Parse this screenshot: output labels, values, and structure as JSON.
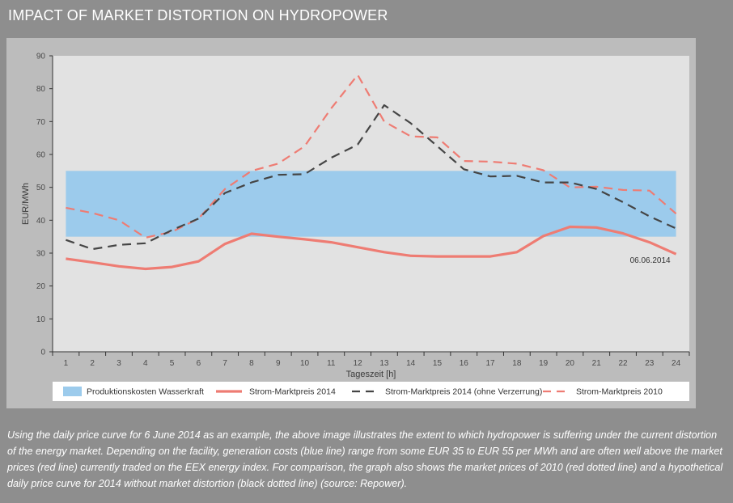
{
  "title": "IMPACT OF MARKET DISTORTION ON HYDROPOWER",
  "caption": "Using the daily price curve for 6 June 2014 as an example, the above image illustrates the extent to which hydropower is suffering under the current distortion of the energy market. Depending on the facility, generation costs (blue line) range from some EUR 35 to EUR 55 per MWh and are often well above the market prices (red line) currently traded on the EEX energy index. For comparison, the graph also shows the market prices of 2010 (red dotted line) and a hypothetical daily price curve for 2014 without market distortion (black dotted line) (source: Repower).",
  "chart_data": {
    "type": "line",
    "xlabel": "Tageszeit [h]",
    "ylabel": "EUR/MWh",
    "x": [
      1,
      2,
      3,
      4,
      5,
      6,
      7,
      8,
      9,
      10,
      11,
      12,
      13,
      14,
      15,
      16,
      17,
      18,
      19,
      20,
      21,
      22,
      23,
      24
    ],
    "xlim": [
      0.5,
      24.5
    ],
    "ylim": [
      0,
      90
    ],
    "yticks": [
      0,
      10,
      20,
      30,
      40,
      50,
      60,
      70,
      80,
      90
    ],
    "grid": false,
    "legend_position": "bottom",
    "band": {
      "name": "Produktionskosten Wasserkraft",
      "from": 35,
      "to": 55,
      "color": "#9ccbec"
    },
    "series": [
      {
        "name": "Strom-Marktpreis 2014",
        "style": "solid",
        "color": "#ee7c73",
        "values": [
          28.3,
          27.2,
          26,
          25.2,
          25.8,
          27.5,
          32.8,
          35.9,
          35,
          34.2,
          33.3,
          31.8,
          30.3,
          29.2,
          29,
          29,
          29,
          30.3,
          35.2,
          38,
          37.8,
          36,
          33.3,
          29.7
        ]
      },
      {
        "name": "Strom-Marktpreis 2014 (ohne Verzerrung)",
        "style": "dashed",
        "color": "#454545",
        "values": [
          34,
          31.2,
          32.5,
          33,
          37,
          40.5,
          48.3,
          51.5,
          53.8,
          54,
          59,
          63,
          75,
          69.5,
          62.5,
          55.5,
          53.3,
          53.5,
          51.5,
          51.5,
          49.5,
          45.5,
          41.2,
          37.5
        ]
      },
      {
        "name": "Strom-Marktpreis 2010",
        "style": "dashed",
        "color": "#ee7c73",
        "values": [
          43.8,
          42.2,
          40,
          34.7,
          36.5,
          40.5,
          49.5,
          55,
          57.2,
          62.5,
          74,
          84.2,
          70,
          65.5,
          65.2,
          58,
          57.8,
          57.2,
          55.2,
          50,
          50.2,
          49.2,
          49,
          42
        ]
      }
    ],
    "annotations": [
      {
        "text": "06.06.2014"
      }
    ]
  }
}
